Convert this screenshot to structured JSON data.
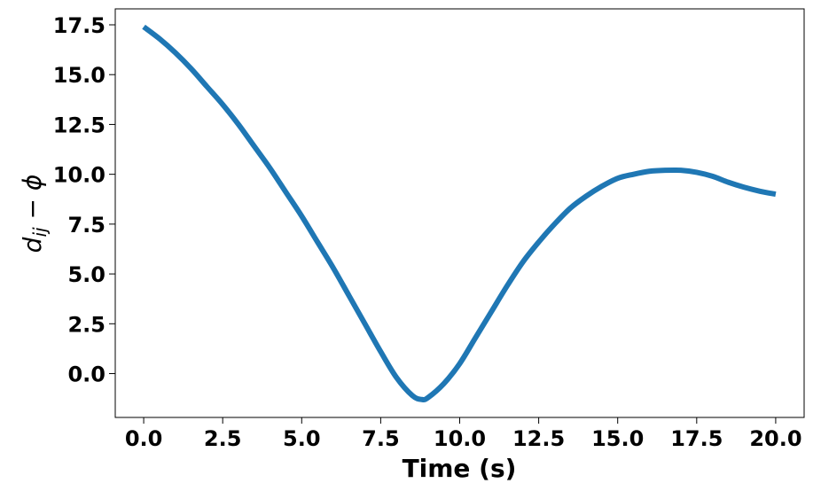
{
  "chart_data": {
    "type": "line",
    "title": "",
    "xlabel": "Time (s)",
    "ylabel": {
      "main": "d",
      "sub": "ij",
      "rest": " − ϕ"
    },
    "xlim": [
      -0.9,
      20.9
    ],
    "ylim": [
      -2.2,
      18.3
    ],
    "xticks": [
      0,
      2.5,
      5,
      7.5,
      10,
      12.5,
      15,
      17.5,
      20
    ],
    "xtick_labels": [
      "0.0",
      "2.5",
      "5.0",
      "7.5",
      "10.0",
      "12.5",
      "15.0",
      "17.5",
      "20.0"
    ],
    "yticks": [
      0,
      2.5,
      5,
      7.5,
      10,
      12.5,
      15,
      17.5
    ],
    "ytick_labels": [
      "0.0",
      "2.5",
      "5.0",
      "7.5",
      "10.0",
      "12.5",
      "15.0",
      "17.5"
    ],
    "grid": false,
    "legend": "none",
    "series": [
      {
        "color": "#1f77b4",
        "x": [
          0,
          0.5,
          1,
          1.5,
          2,
          2.5,
          3,
          3.5,
          4,
          4.5,
          5,
          5.5,
          6,
          6.5,
          7,
          7.5,
          8,
          8.5,
          8.8,
          9,
          9.5,
          10,
          10.5,
          11,
          11.5,
          12,
          12.5,
          13,
          13.5,
          14,
          14.5,
          15,
          15.5,
          16,
          16.5,
          17,
          17.5,
          18,
          18.5,
          19,
          19.5,
          20
        ],
        "y": [
          17.4,
          16.8,
          16.1,
          15.3,
          14.4,
          13.5,
          12.5,
          11.4,
          10.3,
          9.1,
          7.9,
          6.6,
          5.3,
          3.9,
          2.5,
          1.1,
          -0.2,
          -1.1,
          -1.3,
          -1.2,
          -0.5,
          0.5,
          1.8,
          3.1,
          4.4,
          5.6,
          6.6,
          7.5,
          8.3,
          8.9,
          9.4,
          9.8,
          10.0,
          10.15,
          10.2,
          10.2,
          10.1,
          9.9,
          9.6,
          9.35,
          9.15,
          9.0
        ]
      }
    ]
  }
}
